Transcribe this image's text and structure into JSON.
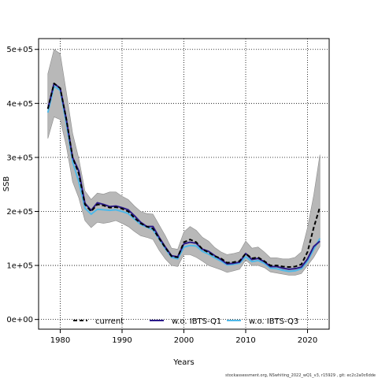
{
  "chart_data": {
    "type": "line",
    "xlabel": "Years",
    "ylabel": "SSB",
    "xlim": [
      1976.5,
      2023.5
    ],
    "ylim": [
      -18000,
      520000
    ],
    "x_ticks": [
      1980,
      1990,
      2000,
      2010,
      2020
    ],
    "x_tick_labels": [
      "1980",
      "1990",
      "2000",
      "2010",
      "2020"
    ],
    "y_ticks": [
      0,
      100000,
      200000,
      300000,
      400000,
      500000
    ],
    "y_tick_labels": [
      "0e+00",
      "1e+05",
      "2e+05",
      "3e+05",
      "4e+05",
      "5e+05"
    ],
    "grid": true,
    "legend_position": "bottom",
    "x": [
      1978,
      1979,
      1980,
      1981,
      1982,
      1983,
      1984,
      1985,
      1986,
      1987,
      1988,
      1989,
      1990,
      1991,
      1992,
      1993,
      1994,
      1995,
      1996,
      1997,
      1998,
      1999,
      2000,
      2001,
      2002,
      2003,
      2004,
      2005,
      2006,
      2007,
      2008,
      2009,
      2010,
      2011,
      2012,
      2013,
      2014,
      2015,
      2016,
      2017,
      2018,
      2019,
      2020,
      2021,
      2022
    ],
    "confidence_band": {
      "lower": [
        335000,
        375000,
        370000,
        320000,
        255000,
        225000,
        183000,
        170000,
        180000,
        178000,
        180000,
        183000,
        178000,
        172000,
        163000,
        155000,
        152000,
        148000,
        128000,
        112000,
        100000,
        98000,
        120000,
        120000,
        115000,
        108000,
        100000,
        96000,
        92000,
        87000,
        90000,
        93000,
        110000,
        100000,
        100000,
        96000,
        88000,
        86000,
        84000,
        82000,
        82000,
        85000,
        100000,
        115000,
        135000
      ],
      "upper": [
        455000,
        500000,
        492000,
        420000,
        345000,
        298000,
        238000,
        222000,
        234000,
        232000,
        236000,
        236000,
        228000,
        222000,
        210000,
        200000,
        196000,
        195000,
        175000,
        155000,
        132000,
        130000,
        162000,
        172000,
        165000,
        152000,
        145000,
        133000,
        125000,
        120000,
        122000,
        125000,
        145000,
        132000,
        134000,
        125000,
        114000,
        114000,
        112000,
        112000,
        115000,
        125000,
        170000,
        230000,
        305000
      ]
    },
    "series": [
      {
        "name": "current",
        "color": "#000000",
        "dash": "dashed",
        "values": [
          390000,
          437000,
          428000,
          370000,
          300000,
          270000,
          213000,
          200000,
          213000,
          211000,
          207000,
          208000,
          205000,
          200000,
          188000,
          178000,
          172000,
          168000,
          150000,
          133000,
          117000,
          115000,
          143000,
          148000,
          143000,
          130000,
          124000,
          117000,
          113000,
          105000,
          106000,
          108000,
          122000,
          113000,
          115000,
          108000,
          100000,
          100000,
          98000,
          97000,
          98000,
          102000,
          125000,
          170000,
          208000
        ]
      },
      {
        "name": "w.o. IBTS-Q1",
        "color": "#2b1a8a",
        "dash": "solid",
        "values": [
          390000,
          437000,
          428000,
          370000,
          300000,
          275000,
          215000,
          202000,
          216000,
          213000,
          209000,
          210000,
          207000,
          203000,
          192000,
          180000,
          172000,
          172000,
          152000,
          134000,
          118000,
          116000,
          140000,
          143000,
          141000,
          130000,
          126000,
          118000,
          111000,
          103000,
          104000,
          106000,
          122000,
          111000,
          113000,
          107000,
          98000,
          98000,
          95000,
          93000,
          94000,
          97000,
          112000,
          135000,
          145000
        ]
      },
      {
        "name": "w.o. IBTS-Q3",
        "color": "#4fb8e8",
        "dash": "solid",
        "values": [
          383000,
          432000,
          424000,
          362000,
          292000,
          255000,
          206000,
          195000,
          204000,
          203000,
          202000,
          203000,
          200000,
          196000,
          186000,
          176000,
          171000,
          166000,
          149000,
          131000,
          115000,
          112000,
          134000,
          137000,
          136000,
          126000,
          121000,
          114000,
          108000,
          101000,
          102000,
          104000,
          116000,
          107000,
          109000,
          104000,
          95000,
          94000,
          91000,
          89000,
          90000,
          94000,
          108000,
          130000,
          150000
        ]
      }
    ]
  },
  "footer": {
    "text": "stockassessment.org, NSwhiting_2022_wQ1_v3, r15929 , git: ec2c2a0c6dde"
  }
}
